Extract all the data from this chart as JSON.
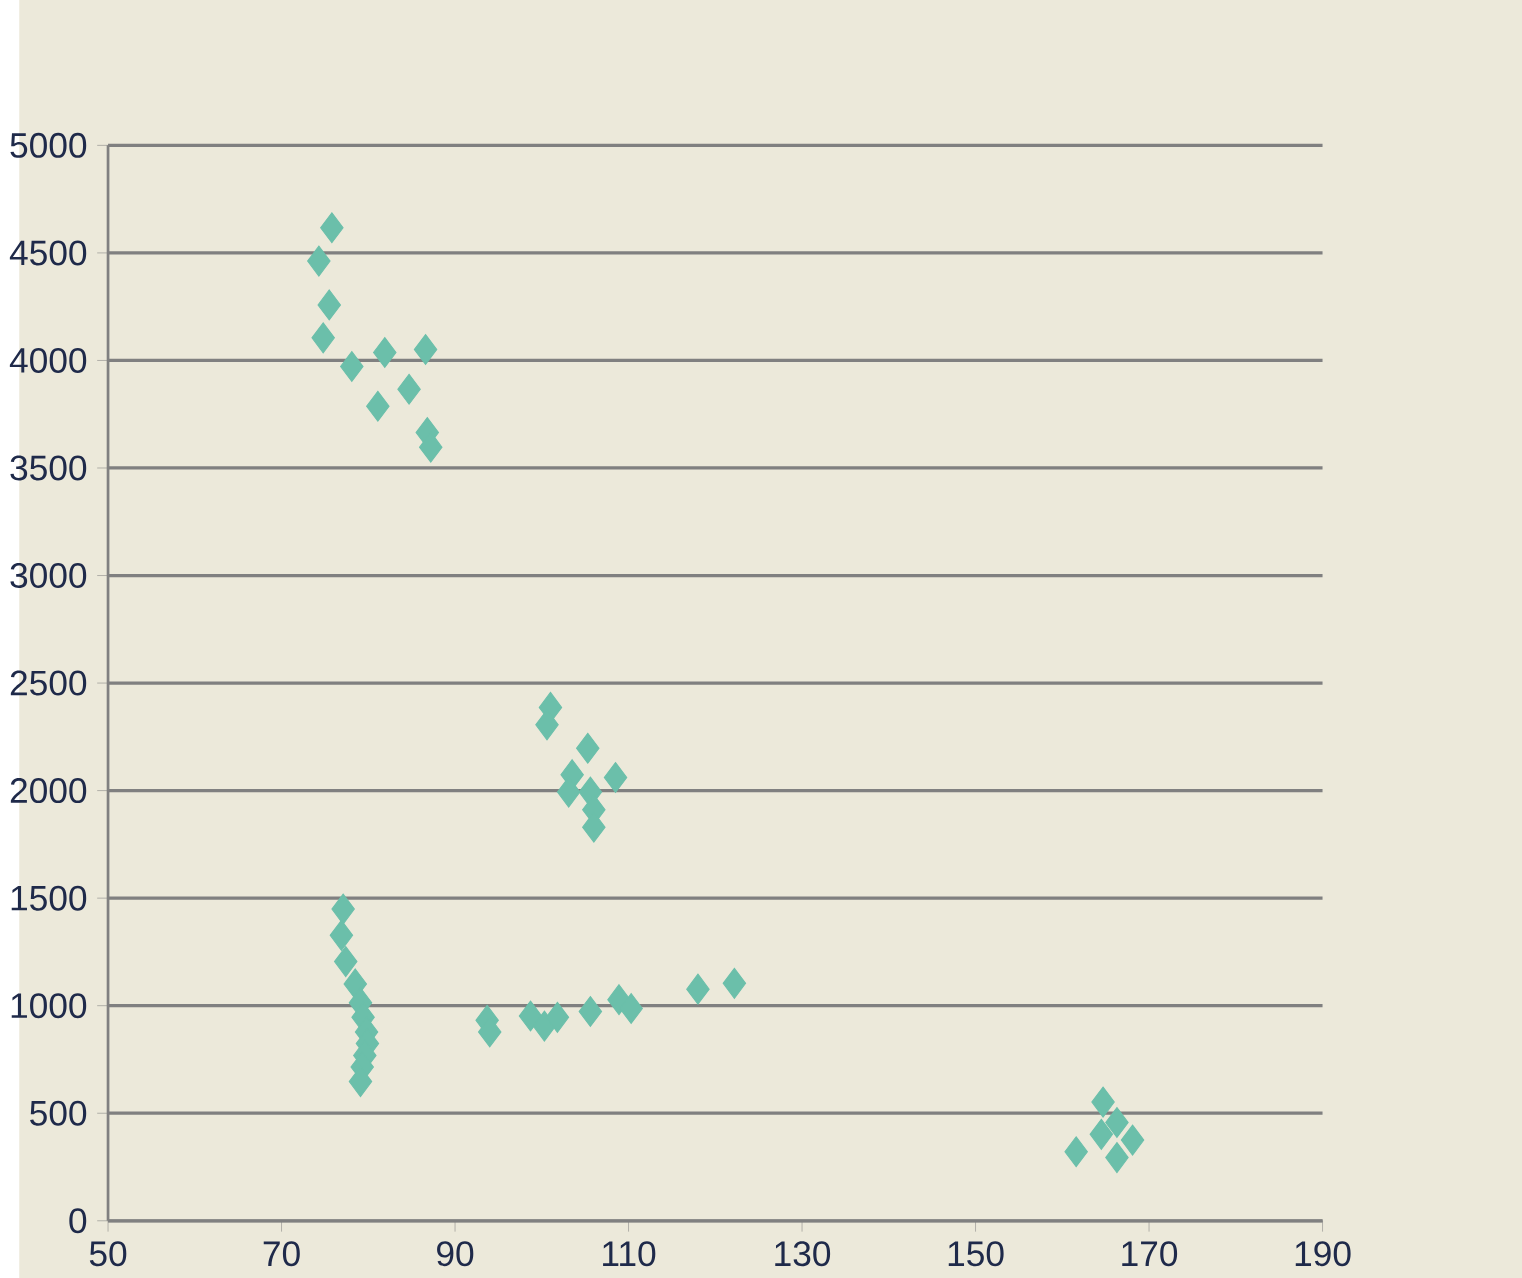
{
  "chart_data": {
    "type": "scatter",
    "color": "#6bbfaa",
    "marker": "diamond",
    "grid": "y",
    "x": [
      75.8,
      74.3,
      75.5,
      74.8,
      78.1,
      81.9,
      86.6,
      84.7,
      81.1,
      86.8,
      87.2,
      101.0,
      100.6,
      105.3,
      103.5,
      108.5,
      103.1,
      105.6,
      106.0,
      106.0,
      77.1,
      76.9,
      77.4,
      78.5,
      79.1,
      79.4,
      79.8,
      79.9,
      79.6,
      79.3,
      79.1,
      93.7,
      94.0,
      98.7,
      100.3,
      101.8,
      105.6,
      108.9,
      110.3,
      118.0,
      122.2,
      164.7,
      166.3,
      161.6,
      168.1,
      164.5,
      166.3
    ],
    "values": [
      4617,
      4462,
      4258,
      4105,
      3972,
      4037,
      4051,
      3866,
      3787,
      3665,
      3597,
      2387,
      2306,
      2197,
      2074,
      2061,
      1993,
      1993,
      1911,
      1830,
      1449,
      1327,
      1205,
      1101,
      1014,
      946,
      878,
      824,
      769,
      715,
      647,
      932,
      878,
      952,
      905,
      946,
      973,
      1028,
      987,
      1077,
      1104,
      552,
      457,
      321,
      375,
      402,
      294
    ],
    "xlim": [
      50,
      190
    ],
    "xticks": [
      50,
      70,
      90,
      110,
      130,
      150,
      170,
      190
    ],
    "ylim": [
      0,
      5000
    ],
    "yticks": [
      0,
      500,
      1000,
      1500,
      2000,
      2500,
      3000,
      3500,
      4000,
      4500,
      5000
    ]
  }
}
